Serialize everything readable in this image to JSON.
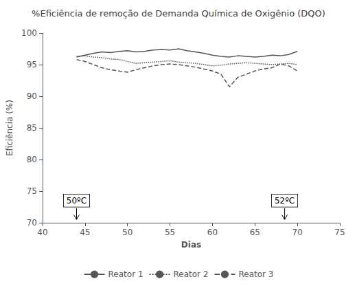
{
  "chart_data": {
    "type": "line",
    "title": "%Eficiência de remoção de Demanda Química de Oxigênio (DQO)",
    "xlabel": "Dias",
    "ylabel": "Eficiência (%)",
    "xlim": [
      40,
      75
    ],
    "ylim": [
      70,
      100
    ],
    "xticks": [
      40,
      45,
      50,
      55,
      60,
      65,
      70,
      75
    ],
    "yticks": [
      70,
      75,
      80,
      85,
      90,
      95,
      100
    ],
    "x": [
      44,
      45,
      46,
      47,
      48,
      49,
      50,
      51,
      52,
      53,
      54,
      55,
      56,
      57,
      58,
      59,
      60,
      61,
      62,
      63,
      64,
      65,
      66,
      67,
      68,
      69,
      70
    ],
    "series": [
      {
        "name": "Reator 1",
        "color": "#555555",
        "line_style": "solid",
        "values": [
          96.2,
          96.5,
          96.8,
          97.0,
          96.9,
          97.1,
          97.2,
          97.0,
          97.1,
          97.3,
          97.4,
          97.3,
          97.5,
          97.2,
          97.0,
          96.8,
          96.5,
          96.3,
          96.2,
          96.4,
          96.3,
          96.2,
          96.3,
          96.5,
          96.4,
          96.6,
          97.1
        ]
      },
      {
        "name": "Reator 2",
        "color": "#555555",
        "line_style": "dotted",
        "values": [
          96.3,
          96.4,
          96.2,
          96.1,
          95.9,
          95.8,
          95.5,
          95.2,
          95.3,
          95.4,
          95.5,
          95.6,
          95.4,
          95.3,
          95.2,
          95.0,
          94.8,
          94.9,
          95.1,
          95.2,
          95.3,
          95.2,
          95.1,
          95.0,
          95.1,
          95.2,
          95.0
        ]
      },
      {
        "name": "Reator 3",
        "color": "#555555",
        "line_style": "dashed",
        "values": [
          95.8,
          95.5,
          95.0,
          94.5,
          94.2,
          94.0,
          93.8,
          94.2,
          94.5,
          94.8,
          95.0,
          95.1,
          95.0,
          94.8,
          94.6,
          94.3,
          94.0,
          93.5,
          91.5,
          93.0,
          93.5,
          94.0,
          94.3,
          94.5,
          95.1,
          94.8,
          94.0
        ]
      }
    ],
    "annotations": [
      {
        "text": "50ºC",
        "x": 44,
        "y": 73.5,
        "arrow_y": 70.5
      },
      {
        "text": "52ºC",
        "x": 68.5,
        "y": 73.5,
        "arrow_y": 70.5
      }
    ],
    "grid": false,
    "legend": "bottom"
  }
}
